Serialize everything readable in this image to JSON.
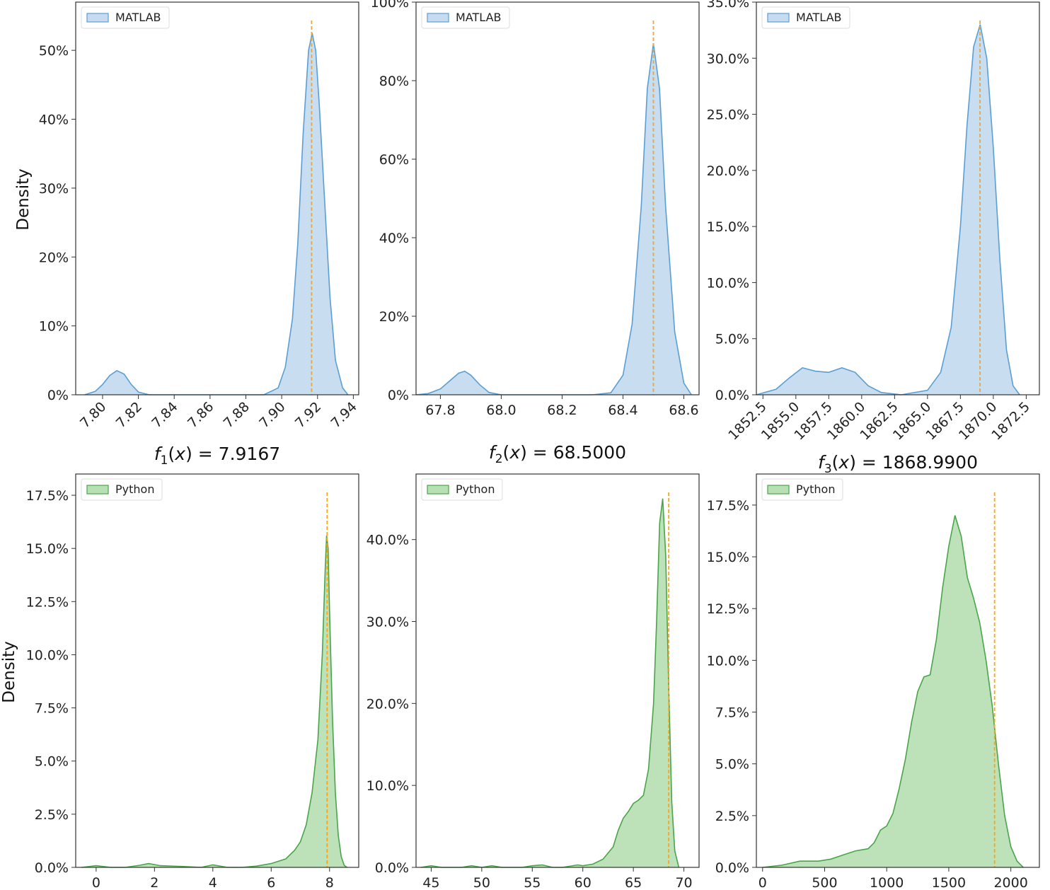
{
  "figure": {
    "ylabel": "Density",
    "colors": {
      "matlab_fill": "#c6dbef",
      "matlab_line": "#5a9fd4",
      "python_fill": "#b9e0b5",
      "python_line": "#4aa54a",
      "reference_line": "#f5a623",
      "axis": "#333333"
    }
  },
  "chart_data": [
    {
      "type": "area",
      "legend": "MATLAB",
      "legend_position": "top-left",
      "xlabel_parts": {
        "fn": "f",
        "sub": "1",
        "arg": "(x)",
        "eq": " = 7.9167"
      },
      "ylabel": "Density",
      "reference_x": 7.9167,
      "xlim": [
        7.785,
        7.943
      ],
      "ylim": [
        0,
        0.57
      ],
      "xticks": [
        7.8,
        7.82,
        7.84,
        7.86,
        7.88,
        7.9,
        7.92,
        7.94
      ],
      "xtick_labels": [
        "7.80",
        "7.82",
        "7.84",
        "7.86",
        "7.88",
        "7.90",
        "7.92",
        "7.94"
      ],
      "xtick_rotate": true,
      "yticks": [
        0,
        0.1,
        0.2,
        0.3,
        0.4,
        0.5
      ],
      "ytick_labels": [
        "0%",
        "10%",
        "20%",
        "30%",
        "40%",
        "50%"
      ],
      "x": [
        7.79,
        7.796,
        7.8,
        7.804,
        7.808,
        7.812,
        7.816,
        7.82,
        7.826,
        7.834,
        7.85,
        7.87,
        7.89,
        7.898,
        7.902,
        7.906,
        7.909,
        7.912,
        7.915,
        7.917,
        7.919,
        7.921,
        7.924,
        7.927,
        7.93,
        7.934,
        7.937
      ],
      "y": [
        0.0,
        0.005,
        0.015,
        0.028,
        0.035,
        0.03,
        0.015,
        0.004,
        0.0,
        0.0,
        0.0,
        0.0,
        0.0,
        0.01,
        0.04,
        0.11,
        0.22,
        0.38,
        0.5,
        0.525,
        0.5,
        0.42,
        0.28,
        0.14,
        0.05,
        0.01,
        0.0
      ]
    },
    {
      "type": "area",
      "legend": "MATLAB",
      "legend_position": "top-left",
      "xlabel_parts": {
        "fn": "f",
        "sub": "2",
        "arg": "(x)",
        "eq": " = 68.5000"
      },
      "reference_x": 68.5,
      "xlim": [
        67.72,
        68.65
      ],
      "ylim": [
        0,
        1.0
      ],
      "xticks": [
        67.8,
        68.0,
        68.2,
        68.4,
        68.6
      ],
      "xtick_labels": [
        "67.8",
        "68.0",
        "68.2",
        "68.4",
        "68.6"
      ],
      "xtick_rotate": false,
      "yticks": [
        0,
        0.2,
        0.4,
        0.6,
        0.8,
        1.0
      ],
      "ytick_labels": [
        "0%",
        "20%",
        "40%",
        "60%",
        "80%",
        "100%"
      ],
      "x": [
        67.72,
        67.76,
        67.8,
        67.83,
        67.86,
        67.88,
        67.9,
        67.93,
        67.96,
        68.0,
        68.1,
        68.2,
        68.3,
        68.36,
        68.4,
        68.43,
        68.46,
        68.48,
        68.5,
        68.52,
        68.54,
        68.57,
        68.6,
        68.625
      ],
      "y": [
        0.0,
        0.003,
        0.015,
        0.035,
        0.055,
        0.06,
        0.05,
        0.025,
        0.006,
        0.0,
        0.0,
        0.0,
        0.0,
        0.005,
        0.05,
        0.18,
        0.48,
        0.78,
        0.895,
        0.78,
        0.48,
        0.16,
        0.03,
        0.0
      ]
    },
    {
      "type": "area",
      "legend": "MATLAB",
      "legend_position": "top-left",
      "xlabel_parts": {
        "fn": "f",
        "sub": "3",
        "arg": "(x)",
        "eq": " = 1868.9900"
      },
      "reference_x": 1868.99,
      "xlim": [
        1852.0,
        1873.5
      ],
      "ylim": [
        0,
        0.35
      ],
      "xticks": [
        1852.5,
        1855.0,
        1857.5,
        1860.0,
        1862.5,
        1865.0,
        1867.5,
        1870.0,
        1872.5
      ],
      "xtick_labels": [
        "1852.5",
        "1855.0",
        "1857.5",
        "1860.0",
        "1862.5",
        "1865.0",
        "1867.5",
        "1870.0",
        "1872.5"
      ],
      "xtick_rotate": true,
      "yticks": [
        0,
        0.05,
        0.1,
        0.15,
        0.2,
        0.25,
        0.3,
        0.35
      ],
      "ytick_labels": [
        "0.0%",
        "5.0%",
        "10.0%",
        "15.0%",
        "20.0%",
        "25.0%",
        "30.0%",
        "35.0%"
      ],
      "x": [
        1852.0,
        1853.5,
        1854.5,
        1855.5,
        1856.5,
        1857.5,
        1858.5,
        1859.5,
        1860.5,
        1861.5,
        1863.0,
        1865.0,
        1866.0,
        1866.8,
        1867.5,
        1868.0,
        1868.5,
        1869.0,
        1869.5,
        1870.0,
        1870.5,
        1871.0,
        1871.5,
        1872.0
      ],
      "y": [
        0.0,
        0.005,
        0.015,
        0.024,
        0.021,
        0.02,
        0.024,
        0.02,
        0.008,
        0.002,
        0.0,
        0.004,
        0.02,
        0.06,
        0.15,
        0.24,
        0.31,
        0.33,
        0.3,
        0.22,
        0.12,
        0.04,
        0.008,
        0.0
      ]
    },
    {
      "type": "area",
      "legend": "Python",
      "legend_position": "top-left",
      "ylabel": "Density",
      "reference_x": 7.9167,
      "xlim": [
        -0.7,
        9.0
      ],
      "ylim": [
        0,
        0.185
      ],
      "xticks": [
        0,
        2,
        4,
        6,
        8
      ],
      "xtick_labels": [
        "0",
        "2",
        "4",
        "6",
        "8"
      ],
      "xtick_rotate": false,
      "yticks": [
        0,
        0.025,
        0.05,
        0.075,
        0.1,
        0.125,
        0.15,
        0.175
      ],
      "ytick_labels": [
        "0.0%",
        "2.5%",
        "5.0%",
        "7.5%",
        "10.0%",
        "12.5%",
        "15.0%",
        "17.5%"
      ],
      "x": [
        -0.5,
        0.0,
        0.5,
        1.0,
        1.5,
        1.8,
        2.2,
        3.0,
        3.6,
        4.0,
        4.5,
        5.0,
        5.5,
        6.0,
        6.5,
        6.8,
        7.0,
        7.2,
        7.4,
        7.6,
        7.75,
        7.85,
        7.9,
        7.95,
        8.0,
        8.1,
        8.2,
        8.3,
        8.4,
        8.5,
        8.6
      ],
      "y": [
        0.0,
        0.0008,
        0.0,
        0.0,
        0.001,
        0.0018,
        0.0008,
        0.0004,
        0.0,
        0.0012,
        0.0,
        0.0,
        0.0006,
        0.0018,
        0.004,
        0.008,
        0.012,
        0.02,
        0.035,
        0.06,
        0.1,
        0.14,
        0.156,
        0.15,
        0.12,
        0.07,
        0.035,
        0.015,
        0.005,
        0.001,
        0.0
      ]
    },
    {
      "type": "area",
      "legend": "Python",
      "legend_position": "top-left",
      "reference_x": 68.5,
      "xlim": [
        43.5,
        71.5
      ],
      "ylim": [
        0,
        0.48
      ],
      "xticks": [
        45,
        50,
        55,
        60,
        65,
        70
      ],
      "xtick_labels": [
        "45",
        "50",
        "55",
        "60",
        "65",
        "70"
      ],
      "xtick_rotate": false,
      "yticks": [
        0,
        0.1,
        0.2,
        0.3,
        0.4
      ],
      "ytick_labels": [
        "0.0%",
        "10.0%",
        "20.0%",
        "30.0%",
        "40.0%"
      ],
      "x": [
        44.0,
        45.0,
        46.0,
        48.0,
        49.0,
        50.0,
        51.0,
        52.0,
        54.0,
        55.0,
        56.0,
        57.0,
        58.0,
        59.5,
        60.0,
        61.0,
        62.0,
        63.0,
        63.5,
        64.0,
        64.5,
        65.0,
        65.5,
        66.0,
        66.5,
        67.0,
        67.3,
        67.6,
        67.9,
        68.2,
        68.5,
        68.8,
        69.1,
        69.5
      ],
      "y": [
        0.0,
        0.002,
        0.0,
        0.0,
        0.002,
        0.0,
        0.002,
        0.0,
        0.0,
        0.002,
        0.003,
        0.0,
        0.0,
        0.003,
        0.002,
        0.004,
        0.01,
        0.025,
        0.045,
        0.06,
        0.068,
        0.078,
        0.082,
        0.088,
        0.12,
        0.2,
        0.3,
        0.42,
        0.45,
        0.38,
        0.22,
        0.08,
        0.02,
        0.0
      ]
    },
    {
      "type": "area",
      "legend": "Python",
      "legend_position": "top-left",
      "reference_x": 1868.99,
      "xlim": [
        -50,
        2230
      ],
      "ylim": [
        0,
        0.19
      ],
      "xticks": [
        0,
        500,
        1000,
        1500,
        2000
      ],
      "xtick_labels": [
        "0",
        "500",
        "1000",
        "1500",
        "2000"
      ],
      "xtick_rotate": false,
      "yticks": [
        0,
        0.025,
        0.05,
        0.075,
        0.1,
        0.125,
        0.15,
        0.175
      ],
      "ytick_labels": [
        "0.0%",
        "2.5%",
        "5.0%",
        "7.5%",
        "10.0%",
        "12.5%",
        "15.0%",
        "17.5%"
      ],
      "x": [
        0,
        150,
        300,
        450,
        550,
        650,
        750,
        850,
        900,
        950,
        1000,
        1050,
        1100,
        1150,
        1200,
        1250,
        1300,
        1350,
        1400,
        1450,
        1500,
        1550,
        1600,
        1650,
        1700,
        1750,
        1800,
        1850,
        1900,
        1950,
        2000,
        2050,
        2100
      ],
      "y": [
        0.0,
        0.001,
        0.003,
        0.003,
        0.004,
        0.006,
        0.008,
        0.009,
        0.012,
        0.018,
        0.02,
        0.026,
        0.038,
        0.052,
        0.07,
        0.085,
        0.092,
        0.093,
        0.11,
        0.135,
        0.155,
        0.17,
        0.16,
        0.14,
        0.13,
        0.118,
        0.1,
        0.078,
        0.05,
        0.025,
        0.01,
        0.003,
        0.0
      ]
    }
  ]
}
